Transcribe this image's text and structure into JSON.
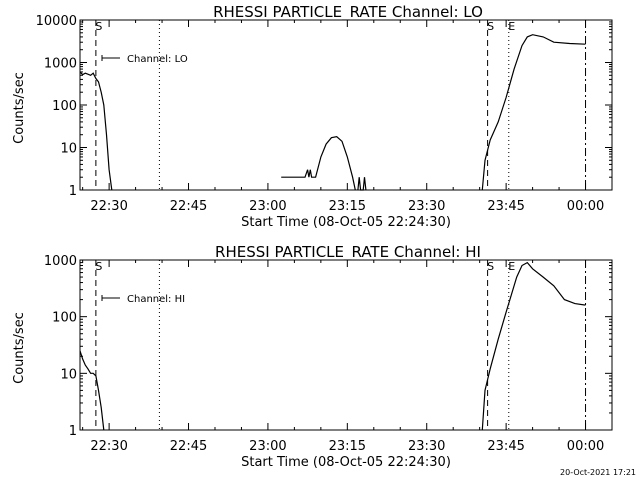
{
  "colors": {
    "background": "#ffffff",
    "ink": "#000000"
  },
  "timestamp": "20-Oct-2021 17:21",
  "chart_data": [
    {
      "type": "line",
      "title": "RHESSI PARTICLE_RATE Channel: LO",
      "xlabel": "Start Time (08-Oct-05 22:24:30)",
      "ylabel": "Counts/sec",
      "y_scale": "log",
      "xlim": [
        "22:24:30",
        "00:05:00"
      ],
      "ylim": [
        1,
        10000
      ],
      "x_tick_labels": [
        "22:30",
        "22:45",
        "23:00",
        "23:15",
        "23:30",
        "23:45",
        "00:00"
      ],
      "y_tick_labels": [
        "1",
        "10",
        "100",
        "1000",
        "10000"
      ],
      "grid": false,
      "legend": {
        "position": "top-left",
        "entries": [
          "Channel: LO"
        ]
      },
      "markers": [
        {
          "label": "S",
          "time": "22:27:30",
          "style": "dashed"
        },
        {
          "label": "",
          "time": "22:39:30",
          "style": "dotted"
        },
        {
          "label": "S",
          "time": "23:41:30",
          "style": "dashed"
        },
        {
          "label": "E",
          "time": "23:45:30",
          "style": "dotted"
        },
        {
          "label": "",
          "time": "00:00:00",
          "style": "dash-dot"
        }
      ],
      "series": [
        {
          "segments": [
            [
              [
                "22:24:30",
                600
              ],
              [
                "22:25:00",
                520
              ],
              [
                "22:25:30",
                560
              ],
              [
                "22:26:00",
                530
              ],
              [
                "22:26:30",
                500
              ],
              [
                "22:27:00",
                560
              ],
              [
                "22:27:30",
                420
              ],
              [
                "22:28:00",
                350
              ],
              [
                "22:28:30",
                200
              ],
              [
                "22:29:00",
                100
              ],
              [
                "22:29:30",
                20
              ],
              [
                "22:30:00",
                3
              ],
              [
                "22:30:30",
                1
              ]
            ],
            [
              [
                "23:02:30",
                2
              ],
              [
                "23:07:00",
                2
              ],
              [
                "23:07:30",
                3
              ],
              [
                "23:07:45",
                2
              ],
              [
                "23:08:00",
                3
              ],
              [
                "23:08:15",
                2
              ],
              [
                "23:09:00",
                2
              ],
              [
                "23:10:00",
                6
              ],
              [
                "23:11:00",
                12
              ],
              [
                "23:12:00",
                17
              ],
              [
                "23:13:00",
                18
              ],
              [
                "23:14:00",
                14
              ],
              [
                "23:15:00",
                6
              ],
              [
                "23:16:00",
                2
              ],
              [
                "23:16:30",
                1
              ]
            ],
            [
              [
                "23:17:00",
                1
              ],
              [
                "23:17:15",
                2
              ],
              [
                "23:17:30",
                1
              ],
              [
                "23:18:00",
                1
              ],
              [
                "23:18:15",
                2
              ],
              [
                "23:18:30",
                1
              ]
            ],
            [
              [
                "23:40:30",
                1
              ],
              [
                "23:41:00",
                5
              ],
              [
                "23:42:00",
                15
              ],
              [
                "23:43:30",
                40
              ],
              [
                "23:45:00",
                150
              ],
              [
                "23:46:30",
                700
              ],
              [
                "23:48:00",
                2500
              ],
              [
                "23:49:00",
                4000
              ],
              [
                "23:50:00",
                4500
              ],
              [
                "23:52:00",
                4000
              ],
              [
                "23:54:00",
                3000
              ],
              [
                "23:57:00",
                2800
              ],
              [
                "00:00:00",
                2700
              ]
            ]
          ]
        }
      ]
    },
    {
      "type": "line",
      "title": "RHESSI PARTICLE_RATE Channel: HI",
      "xlabel": "Start Time (08-Oct-05 22:24:30)",
      "ylabel": "Counts/sec",
      "y_scale": "log",
      "xlim": [
        "22:24:30",
        "00:05:00"
      ],
      "ylim": [
        1,
        1000
      ],
      "x_tick_labels": [
        "22:30",
        "22:45",
        "23:00",
        "23:15",
        "23:30",
        "23:45",
        "00:00"
      ],
      "y_tick_labels": [
        "1",
        "10",
        "100",
        "1000"
      ],
      "grid": false,
      "legend": {
        "position": "top-left",
        "entries": [
          "Channel: HI"
        ]
      },
      "markers": [
        {
          "label": "S",
          "time": "22:27:30",
          "style": "dashed"
        },
        {
          "label": "",
          "time": "22:39:30",
          "style": "dotted"
        },
        {
          "label": "S",
          "time": "23:41:30",
          "style": "dashed"
        },
        {
          "label": "E",
          "time": "23:45:30",
          "style": "dotted"
        },
        {
          "label": "",
          "time": "00:00:00",
          "style": "dash-dot"
        }
      ],
      "series": [
        {
          "segments": [
            [
              [
                "22:24:30",
                25
              ],
              [
                "22:25:00",
                18
              ],
              [
                "22:25:30",
                14
              ],
              [
                "22:26:00",
                12
              ],
              [
                "22:26:30",
                10
              ],
              [
                "22:27:00",
                10
              ],
              [
                "22:27:30",
                9
              ],
              [
                "22:28:00",
                5
              ],
              [
                "22:28:30",
                2.5
              ],
              [
                "22:29:00",
                1
              ]
            ],
            [
              [
                "23:40:30",
                1
              ],
              [
                "23:41:00",
                5
              ],
              [
                "23:42:00",
                12
              ],
              [
                "23:43:30",
                40
              ],
              [
                "23:45:00",
                120
              ],
              [
                "23:47:00",
                500
              ],
              [
                "23:48:00",
                800
              ],
              [
                "23:49:00",
                900
              ],
              [
                "23:50:00",
                700
              ],
              [
                "23:52:00",
                500
              ],
              [
                "23:54:00",
                350
              ],
              [
                "23:56:00",
                200
              ],
              [
                "23:58:00",
                170
              ],
              [
                "00:00:00",
                160
              ]
            ]
          ]
        }
      ]
    }
  ]
}
